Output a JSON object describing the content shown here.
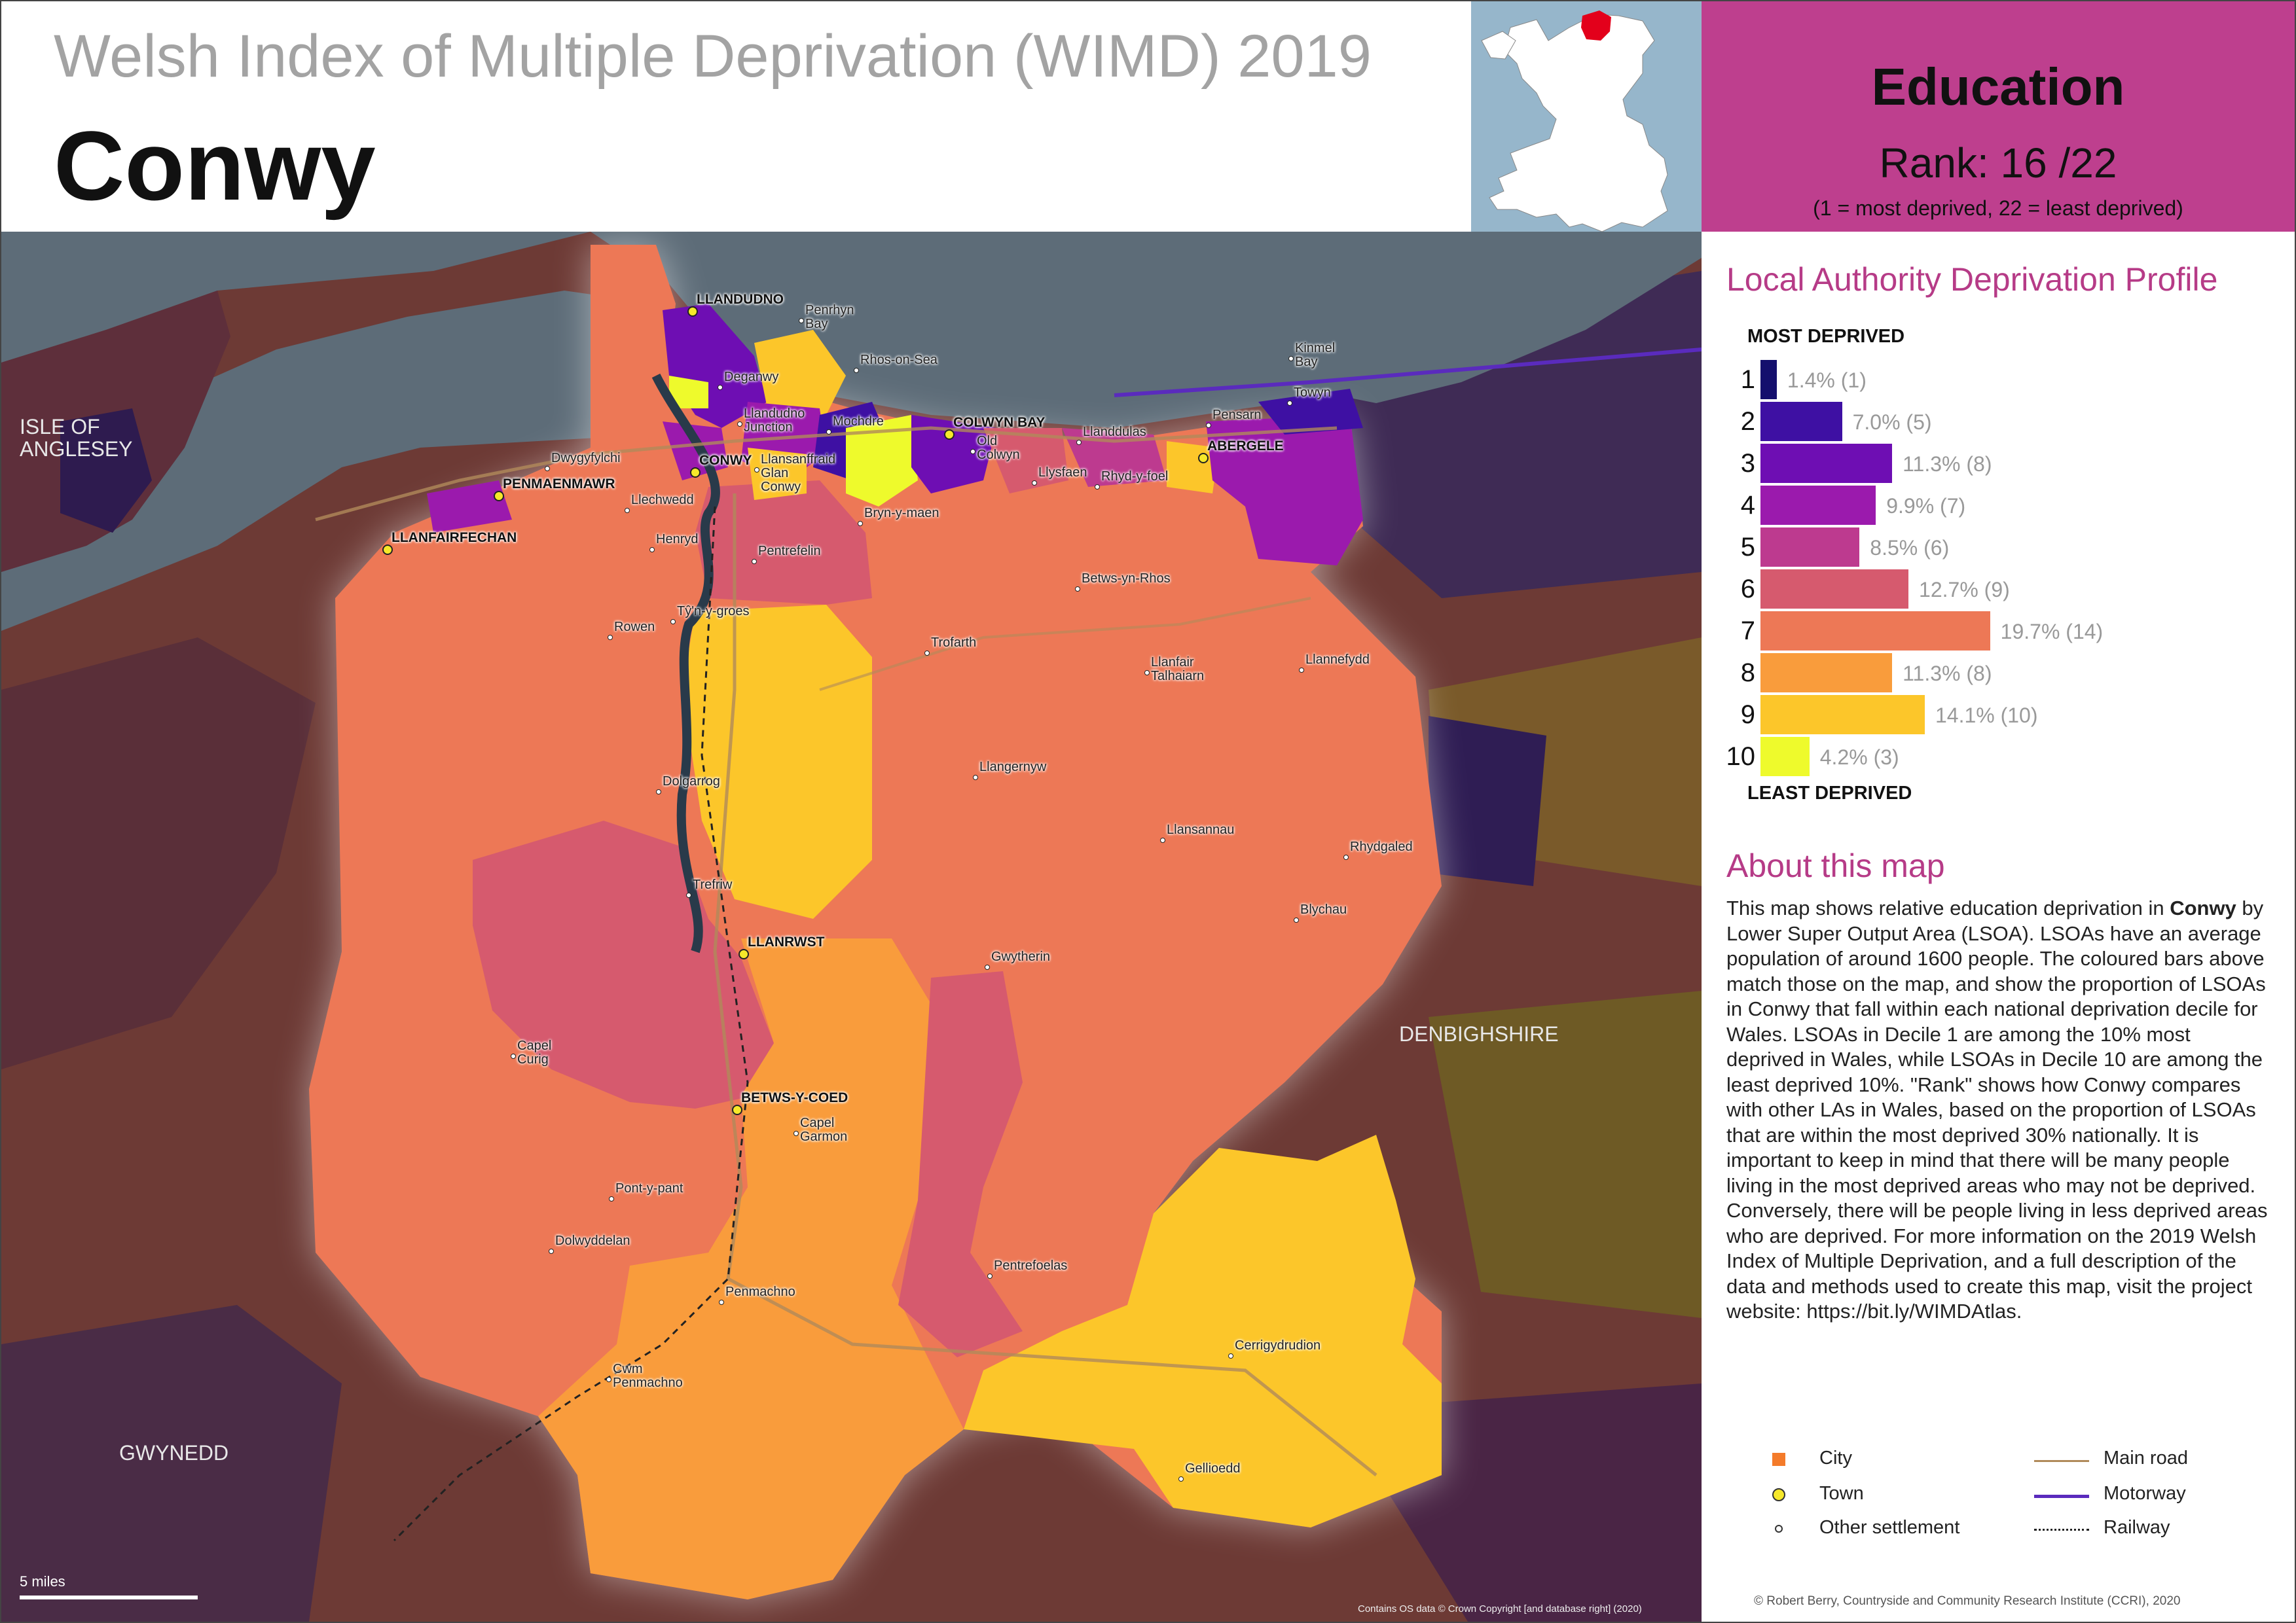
{
  "header": {
    "supertitle": "Welsh Index of Multiple Deprivation (WIMD) 2019",
    "local_authority": "Conwy"
  },
  "domain_box": {
    "domain": "Education",
    "rank_prefix": "Rank:",
    "rank_value": "16",
    "rank_total": "/22",
    "rank_note": "(1 =   most deprived, 22 = least deprived)",
    "background": "#be3f8e"
  },
  "profile": {
    "heading": "Local Authority Deprivation Profile",
    "top_caption": "MOST DEPRIVED",
    "bottom_caption": "LEAST DEPRIVED",
    "bars": [
      {
        "decile": "1",
        "percent": 1.4,
        "label": "1.4% (1)",
        "color": "#140f6d"
      },
      {
        "decile": "2",
        "percent": 7.0,
        "label": "7.0% (5)",
        "color": "#3e10a3"
      },
      {
        "decile": "3",
        "percent": 11.3,
        "label": "11.3% (8)",
        "color": "#6e0eb3"
      },
      {
        "decile": "4",
        "percent": 9.9,
        "label": "9.9% (7)",
        "color": "#9b1aad"
      },
      {
        "decile": "5",
        "percent": 8.5,
        "label": "8.5% (6)",
        "color": "#bd3a8f"
      },
      {
        "decile": "6",
        "percent": 12.7,
        "label": "12.7% (9)",
        "color": "#d65a6e"
      },
      {
        "decile": "7",
        "percent": 19.7,
        "label": "19.7% (14)",
        "color": "#ed7856"
      },
      {
        "decile": "8",
        "percent": 11.3,
        "label": "11.3% (8)",
        "color": "#f99c3c"
      },
      {
        "decile": "9",
        "percent": 14.1,
        "label": "14.1% (10)",
        "color": "#fcc62a"
      },
      {
        "decile": "10",
        "percent": 4.2,
        "label": "4.2% (3)",
        "color": "#eefa2c"
      }
    ]
  },
  "about": {
    "heading": "About this map",
    "p1": "This map shows relative education deprivation in ",
    "la_bold": "Conwy",
    "p2": " by Lower Super Output Area (LSOA). LSOAs have an average population of around 1600 people. The coloured bars above match those on the map, and show the proportion of LSOAs in Conwy that fall within each national deprivation decile for Wales. LSOAs in Decile 1 are among the 10% most deprived in Wales, while LSOAs in Decile 10 are among the least deprived 10%. \"Rank\" shows how Conwy compares with other LAs in Wales, based on the proportion of LSOAs that are within the most deprived 30% nationally. It is important to keep in mind that there will be many people living in the most deprived areas who may not be deprived. Conversely, there will be people living in less deprived areas who are deprived. For more information on the 2019 Welsh Index of Multiple Deprivation, and a full description of the data and methods used to create this map, visit the project website: https://bit.ly/WIMDAtlas."
  },
  "legend": {
    "city": "City",
    "town": "Town",
    "other": "Other settlement",
    "main_road": "Main road",
    "motorway": "Motorway",
    "railway": "Railway"
  },
  "credit": "© Robert Berry, Countryside and Community Research Institute (CCRI), 2020",
  "map": {
    "copyright": "Contains OS data © Crown Copyright [and database right] (2020)",
    "scale_label": "5 miles",
    "areas": {
      "anglesey": "ISLE OF\nANGLESEY",
      "gwynedd": "GWYNEDD",
      "denbighshire": "DENBIGHSHIRE"
    },
    "towns": [
      "LLANDUDNO",
      "COLWYN BAY",
      "ABERGELE",
      "CONWY",
      "PENMAENMAWR",
      "LLANFAIRFECHAN",
      "LLANRWST",
      "BETWS-Y-COED"
    ],
    "settlements": [
      "Penrhyn\nBay",
      "Rhos-on-Sea",
      "Deganwy",
      "Llandudno\nJunction",
      "Mochdre",
      "Old\nColwyn",
      "Llanddulas",
      "Kinmel\nBay",
      "Towyn",
      "Pensarn",
      "Dwygyfylchi",
      "Llechwedd",
      "Llansanffraid\nGlan\nConwy",
      "Llysfaen",
      "Rhyd-y-foel",
      "Bryn-y-maen",
      "Henryd",
      "Pentrefelin",
      "Betws-yn-Rhos",
      "Rowen",
      "Tŷ'n-y-groes",
      "Trofarth",
      "Llanfair\nTalhaiarn",
      "Llannefydd",
      "Llangernyw",
      "Dolgarrog",
      "Llansannau",
      "Rhydgaled",
      "Trefriw",
      "Blychau",
      "Gwytherin",
      "Capel\nCurig",
      "Capel\nGarmon",
      "Pont-y-pant",
      "Dolwyddelan",
      "Pentrefoelas",
      "Penmachno",
      "Cerrigydrudion",
      "Cwm\nPenmachno",
      "Gellioedd"
    ]
  },
  "colors": {
    "sea": "#5d6c78",
    "outside_land": "#6d3a35",
    "locator_sea": "#96b6cb",
    "locator_conwy": "#e3001b",
    "accent": "#b63b87"
  }
}
